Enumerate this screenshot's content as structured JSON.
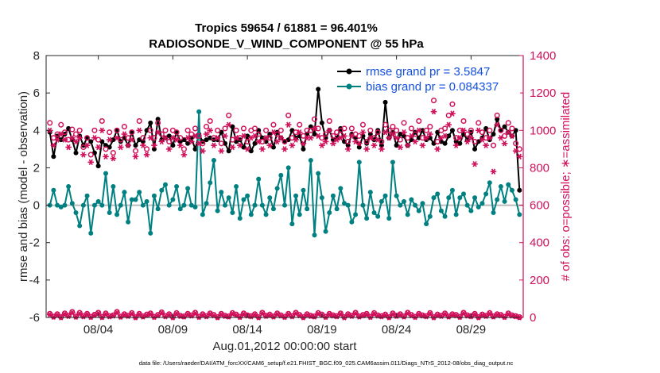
{
  "chart_data": {
    "type": "line",
    "title": "Tropics 59654 / 61881 = 96.401%",
    "subtitle": "RADIOSONDE_V_WIND_COMPONENT @ 55 hPa",
    "xlabel": "Aug.01,2012 00:00:00 start",
    "ylabel": "rmse and bias (model - observation)",
    "y2label": "# of obs: o=possible; ∗=assimilated",
    "footnote": "data file: /Users/raeder/DAI/ATM_forcXX/CAM6_setup/f.e21.FHIST_BGC.f09_025.CAM6assim.011/Diags_NTrS_2012-08/obs_diag_output.nc",
    "xlim": [
      0,
      32
    ],
    "ylim": [
      -6,
      8
    ],
    "y2lim": [
      0,
      1400
    ],
    "x_ticks": [
      3.5,
      8.5,
      13.5,
      18.5,
      23.5,
      28.5
    ],
    "x_tick_labels": [
      "08/04",
      "08/09",
      "08/14",
      "08/19",
      "08/24",
      "08/29"
    ],
    "y_ticks": [
      -6,
      -4,
      -2,
      0,
      2,
      4,
      6,
      8
    ],
    "y_tick_labels": [
      "-6",
      "-4",
      "-2",
      "0",
      "2",
      "4",
      "6",
      "8"
    ],
    "y2_ticks": [
      0,
      200,
      400,
      600,
      800,
      1000,
      1200,
      1400
    ],
    "y2_tick_labels": [
      "0",
      "200",
      "400",
      "600",
      "800",
      "1000",
      "1200",
      "1400"
    ],
    "x": [
      0.25,
      0.5,
      0.75,
      1.0,
      1.25,
      1.5,
      1.75,
      2.0,
      2.25,
      2.5,
      2.75,
      3.0,
      3.25,
      3.5,
      3.75,
      4.0,
      4.25,
      4.5,
      4.75,
      5.0,
      5.25,
      5.5,
      5.75,
      6.0,
      6.25,
      6.5,
      6.75,
      7.0,
      7.25,
      7.5,
      7.75,
      8.0,
      8.25,
      8.5,
      8.75,
      9.0,
      9.25,
      9.5,
      9.75,
      10.0,
      10.25,
      10.5,
      10.75,
      11.0,
      11.25,
      11.5,
      11.75,
      12.0,
      12.25,
      12.5,
      12.75,
      13.0,
      13.25,
      13.5,
      13.75,
      14.0,
      14.25,
      14.5,
      14.75,
      15.0,
      15.25,
      15.5,
      15.75,
      16.0,
      16.25,
      16.5,
      16.75,
      17.0,
      17.25,
      17.5,
      17.75,
      18.0,
      18.25,
      18.5,
      18.75,
      19.0,
      19.25,
      19.5,
      19.75,
      20.0,
      20.25,
      20.5,
      20.75,
      21.0,
      21.25,
      21.5,
      21.75,
      22.0,
      22.25,
      22.5,
      22.75,
      23.0,
      23.25,
      23.5,
      23.75,
      24.0,
      24.25,
      24.5,
      24.75,
      25.0,
      25.25,
      25.5,
      25.75,
      26.0,
      26.25,
      26.5,
      26.75,
      27.0,
      27.25,
      27.5,
      27.75,
      28.0,
      28.25,
      28.5,
      28.75,
      29.0,
      29.25,
      29.5,
      29.75,
      30.0,
      30.25,
      30.5,
      30.75,
      31.0,
      31.25,
      31.5,
      31.75
    ],
    "series": [
      {
        "name": "rmse grand pr = 3.5847",
        "axis": "left",
        "color": "#000000",
        "values": [
          3.9,
          2.6,
          3.7,
          3.5,
          3.8,
          4.1,
          3.5,
          2.8,
          3.7,
          3.2,
          3.6,
          3.4,
          2.8,
          2.1,
          3.4,
          3.2,
          3.1,
          3.5,
          4.0,
          3.4,
          3.6,
          3.2,
          3.9,
          3.2,
          3.5,
          3.4,
          4.0,
          4.4,
          3.0,
          4.6,
          3.5,
          3.6,
          3.7,
          3.2,
          3.9,
          3.4,
          3.5,
          3.3,
          3.6,
          3.0,
          3.8,
          3.4,
          3.5,
          3.6,
          3.5,
          3.5,
          3.9,
          3.3,
          2.9,
          4.2,
          3.4,
          3.5,
          3.1,
          3.7,
          2.9,
          3.3,
          4.0,
          3.6,
          3.4,
          3.8,
          3.1,
          3.9,
          3.6,
          3.4,
          3.5,
          4.0,
          3.6,
          3.7,
          3.0,
          3.8,
          4.2,
          3.8,
          6.2,
          4.4,
          3.6,
          4.0,
          3.5,
          3.6,
          4.1,
          3.4,
          3.2,
          3.8,
          3.6,
          3.1,
          3.7,
          3.3,
          3.8,
          3.5,
          4.0,
          3.2,
          5.5,
          3.6,
          3.9,
          3.2,
          3.8,
          3.7,
          3.2,
          3.5,
          3.9,
          3.6,
          4.0,
          3.5,
          3.6,
          3.3,
          3.9,
          3.4,
          3.3,
          3.7,
          4.0,
          3.4,
          3.3,
          3.8,
          3.5,
          3.9,
          3.0,
          3.4,
          3.6,
          4.1,
          3.5,
          3.8,
          4.6,
          4.0,
          4.2,
          3.9,
          3.7,
          4.0,
          0.8
        ]
      },
      {
        "name": "bias grand pr = 0.084337",
        "axis": "left",
        "color": "#008080",
        "values": [
          0.0,
          0.8,
          0.0,
          -0.1,
          0.0,
          1.0,
          0.1,
          -0.4,
          -1.1,
          0.0,
          0.5,
          -1.5,
          0.0,
          0.2,
          0.0,
          1.7,
          -0.4,
          1.0,
          -0.5,
          0.0,
          0.7,
          -0.9,
          0.3,
          0.3,
          0.7,
          0.0,
          0.2,
          -1.5,
          0.5,
          -0.2,
          0.8,
          1.1,
          0.0,
          0.3,
          1.0,
          -0.2,
          0.0,
          0.9,
          0.0,
          -0.1,
          5.0,
          -0.5,
          0.1,
          1.2,
          2.4,
          -0.3,
          0.7,
          0.0,
          0.4,
          -0.4,
          1.0,
          -0.7,
          0.3,
          0.5,
          -0.5,
          0.0,
          1.4,
          0.0,
          -0.5,
          0.4,
          -0.2,
          0.9,
          1.6,
          0.0,
          2.0,
          -1.0,
          0.5,
          -0.5,
          0.8,
          -0.2,
          2.4,
          -1.6,
          1.7,
          0.4,
          -1.4,
          -0.4,
          0.5,
          -0.2,
          0.9,
          0.1,
          0.0,
          -0.9,
          -0.5,
          2.3,
          0.0,
          -0.7,
          0.7,
          -0.4,
          -0.6,
          0.2,
          0.5,
          -0.7,
          2.3,
          0.5,
          0.0,
          0.2,
          -0.5,
          0.3,
          0.0,
          -0.3,
          0.1,
          -1.0,
          -0.6,
          0.4,
          0.6,
          -0.3,
          -0.6,
          0.4,
          0.8,
          -0.5,
          0.4,
          0.6,
          0.0,
          -0.3,
          0.4,
          -0.1,
          0.1,
          0.6,
          1.2,
          -0.4,
          0.3,
          1.0,
          0.2,
          1.1,
          0.8,
          0.3,
          -0.5
        ]
      },
      {
        "name": "possible",
        "axis": "right",
        "color": "#D0105A",
        "marker": "o",
        "values": [
          1040,
          960,
          980,
          1030,
          990,
          950,
          1005,
          980,
          1000,
          910,
          960,
          870,
          1000,
          950,
          1050,
          900,
          990,
          880,
          1000,
          950,
          1020,
          960,
          990,
          890,
          1050,
          960,
          900,
          1000,
          960,
          1040,
          980,
          1000,
          940,
          1000,
          990,
          960,
          900,
          1000,
          980,
          1010,
          970,
          930,
          1020,
          1050,
          960,
          1000,
          930,
          1010,
          1080,
          950,
          1000,
          960,
          1010,
          940,
          1000,
          1010,
          980,
          940,
          1000,
          960,
          1030,
          980,
          1000,
          940,
          1080,
          960,
          990,
          1030,
          970,
          1000,
          1000,
          1060,
          1010,
          960,
          980,
          1050,
          970,
          990,
          1000,
          1010,
          940,
          1010,
          980,
          970,
          1030,
          940,
          1000,
          960,
          990,
          940,
          1030,
          1000,
          1020,
          1000,
          950,
          1040,
          960,
          1010,
          980,
          1050,
          960,
          1000,
          1020,
          1160,
          940,
          1000,
          1010,
          1080,
          1140,
          960,
          1000,
          1050,
          980,
          1000,
          940,
          1040,
          990,
          960,
          1000,
          920,
          1080,
          1000,
          970,
          1040,
          1010,
          930,
          900
        ]
      },
      {
        "name": "assimilated",
        "axis": "right",
        "color": "#D0105A",
        "marker": "*",
        "values": [
          1000,
          920,
          950,
          980,
          950,
          910,
          960,
          940,
          960,
          870,
          920,
          830,
          960,
          910,
          1000,
          860,
          950,
          850,
          960,
          910,
          980,
          920,
          950,
          860,
          1000,
          920,
          870,
          960,
          920,
          990,
          940,
          960,
          900,
          960,
          950,
          920,
          870,
          960,
          940,
          970,
          930,
          890,
          980,
          1000,
          920,
          960,
          890,
          970,
          1030,
          910,
          960,
          920,
          970,
          900,
          960,
          970,
          940,
          900,
          960,
          920,
          990,
          940,
          960,
          900,
          1030,
          920,
          950,
          990,
          930,
          960,
          960,
          1010,
          970,
          920,
          940,
          1000,
          930,
          950,
          960,
          970,
          900,
          970,
          940,
          930,
          990,
          900,
          960,
          920,
          950,
          900,
          990,
          960,
          980,
          960,
          910,
          990,
          920,
          970,
          940,
          1000,
          920,
          960,
          980,
          1100,
          900,
          960,
          970,
          1030,
          1090,
          920,
          960,
          1000,
          940,
          960,
          820,
          1000,
          950,
          920,
          960,
          780,
          1030,
          960,
          930,
          990,
          970,
          890,
          860
        ]
      },
      {
        "name": "possible_bottom",
        "axis": "right",
        "color": "#D0105A",
        "marker": "o",
        "values": [
          20,
          5,
          18,
          2,
          22,
          10,
          30,
          5,
          25,
          8,
          20,
          4,
          15,
          26,
          3,
          22,
          8,
          12,
          30,
          5,
          18,
          10,
          24,
          2,
          20,
          6,
          16,
          22,
          4,
          14,
          28,
          8,
          18,
          2,
          24,
          10,
          6,
          20,
          12,
          26,
          4,
          18,
          8,
          22,
          14,
          2,
          20,
          10,
          6,
          24,
          16,
          4,
          22,
          12,
          8,
          18,
          2,
          26,
          10,
          16,
          6,
          22,
          12,
          4,
          20,
          8,
          26,
          14,
          2,
          18,
          10,
          6,
          24,
          16,
          4,
          20,
          12,
          8,
          22,
          2,
          18,
          10,
          26,
          6,
          14,
          20,
          4,
          24,
          12,
          8,
          16,
          2,
          22,
          10,
          18,
          6,
          26,
          14,
          4,
          20,
          12,
          8,
          24,
          2,
          16,
          10,
          22,
          6,
          18,
          14,
          4,
          26,
          12,
          8,
          20,
          2,
          16,
          10,
          24,
          6,
          18,
          14,
          4,
          22,
          12,
          8,
          2
        ]
      },
      {
        "name": "assimilated_bottom",
        "axis": "right",
        "color": "#D0105A",
        "marker": "*",
        "values": [
          15,
          3,
          14,
          0,
          18,
          7,
          25,
          3,
          20,
          5,
          16,
          2,
          12,
          22,
          1,
          18,
          5,
          9,
          25,
          3,
          14,
          7,
          20,
          0,
          16,
          4,
          12,
          18,
          2,
          10,
          24,
          5,
          14,
          0,
          20,
          7,
          4,
          16,
          9,
          22,
          2,
          14,
          5,
          18,
          10,
          0,
          16,
          7,
          4,
          20,
          12,
          2,
          18,
          9,
          5,
          14,
          0,
          22,
          7,
          12,
          4,
          18,
          9,
          2,
          16,
          5,
          22,
          10,
          0,
          14,
          7,
          4,
          20,
          12,
          2,
          16,
          9,
          5,
          18,
          0,
          14,
          7,
          22,
          4,
          10,
          16,
          2,
          20,
          9,
          5,
          12,
          0,
          18,
          7,
          14,
          4,
          22,
          10,
          2,
          16,
          9,
          5,
          20,
          0,
          12,
          7,
          18,
          4,
          14,
          10,
          2,
          22,
          9,
          5,
          16,
          0,
          12,
          7,
          20,
          4,
          14,
          10,
          2,
          18,
          9,
          5,
          0
        ]
      }
    ],
    "legend": [
      {
        "label": "rmse grand pr = 3.5847",
        "color": "#000000"
      },
      {
        "label": "bias grand pr = 0.084337",
        "color": "#008080"
      }
    ],
    "legend_text_color": "#1450E0",
    "legend_position": "top-right",
    "zero_line_color": "#BBBBBB",
    "right_axis_color": "#D0105A",
    "grid": false
  }
}
